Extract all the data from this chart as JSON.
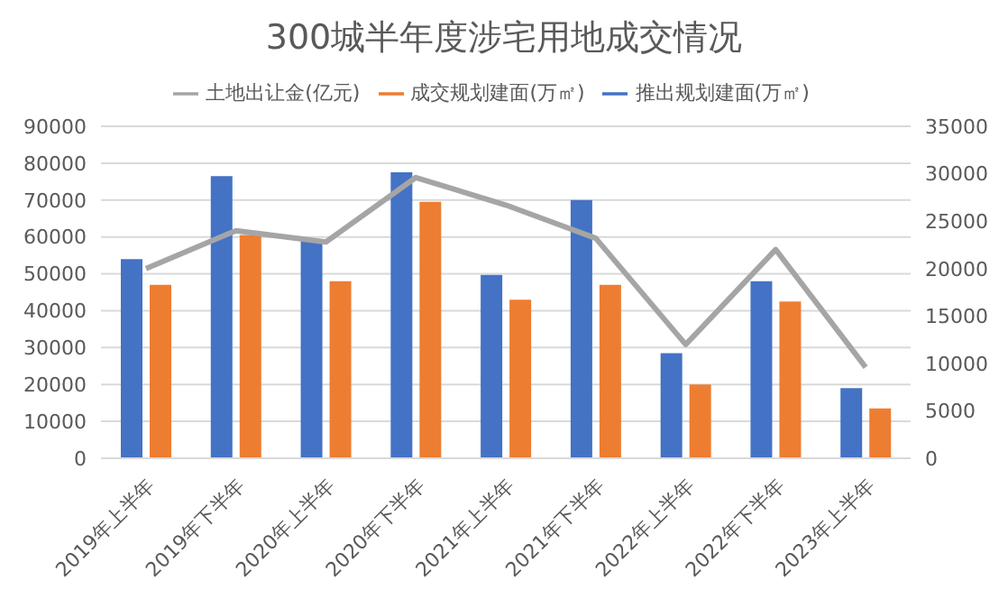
{
  "chart_data": {
    "type": "bar",
    "title": "300城半年度涉宅用地成交情况",
    "categories": [
      "2019年上半年",
      "2019年下半年",
      "2020年上半年",
      "2020年下半年",
      "2021年上半年",
      "2021年下半年",
      "2022年上半年",
      "2022年下半年",
      "2023年上半年"
    ],
    "series": [
      {
        "name": "推出规划建面(万㎡)",
        "color": "#4472c4",
        "values": [
          54000,
          76500,
          59000,
          77500,
          49700,
          70000,
          28500,
          48000,
          19000
        ]
      },
      {
        "name": "成交规划建面(万㎡)",
        "color": "#ed7d31",
        "values": [
          47000,
          60500,
          48000,
          69500,
          43000,
          47000,
          20000,
          42500,
          13500
        ]
      },
      {
        "name": "土地出让金(亿元)",
        "type": "line",
        "axis": "y2",
        "color": "#a5a5a5",
        "values": [
          20000,
          24000,
          22800,
          29600,
          26700,
          23200,
          12000,
          22000,
          9600
        ]
      }
    ],
    "ylim": [
      0,
      90000
    ],
    "yticks": [
      0,
      10000,
      20000,
      30000,
      40000,
      50000,
      60000,
      70000,
      80000,
      90000
    ],
    "y2lim": [
      0,
      35000
    ],
    "y2ticks": [
      0,
      5000,
      10000,
      15000,
      20000,
      25000,
      30000,
      35000
    ],
    "grid": "y",
    "legend": "top",
    "marker": "none"
  }
}
